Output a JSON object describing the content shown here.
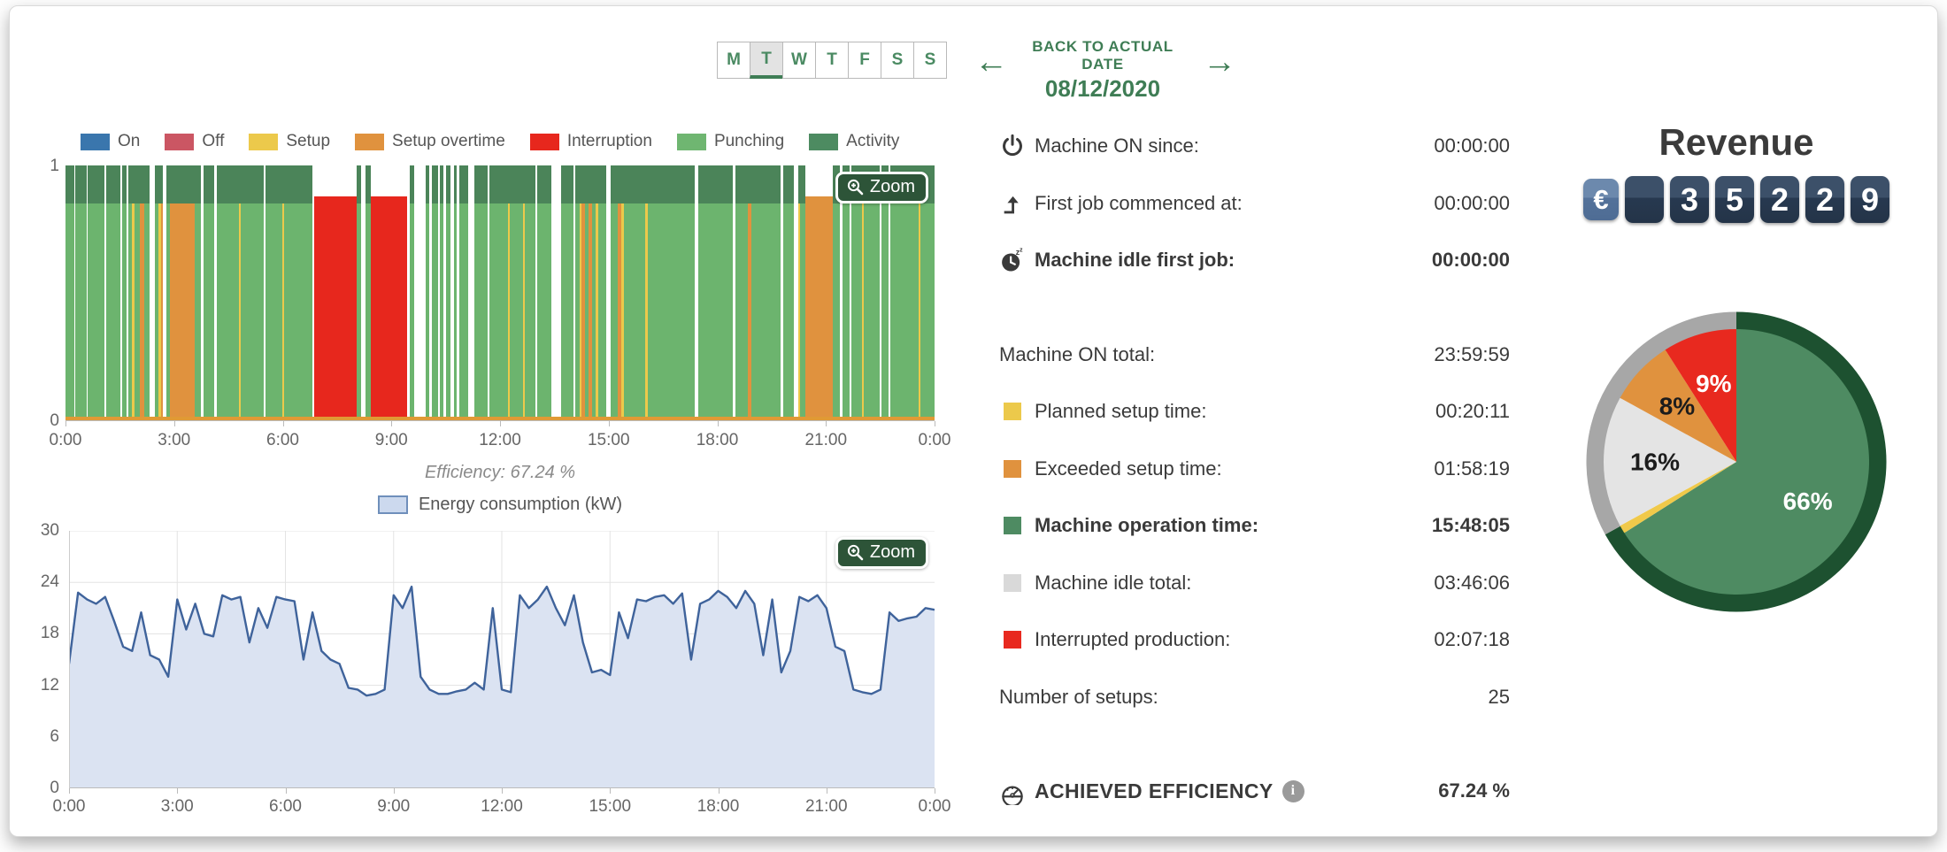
{
  "header": {
    "days": [
      "M",
      "T",
      "W",
      "T",
      "F",
      "S",
      "S"
    ],
    "selected_day_index": 1,
    "prev_arrow": "←",
    "next_arrow": "→",
    "back_label": "BACK TO ACTUAL DATE",
    "date": "08/12/2020"
  },
  "zoom_button_label": "Zoom",
  "efficiency_caption": "Efficiency: 67.24 %",
  "energy_legend_label": "Energy consumption (kW)",
  "timeline_legend": [
    {
      "label": "On",
      "color": "#3a76ad"
    },
    {
      "label": "Off",
      "color": "#cb5663"
    },
    {
      "label": "Setup",
      "color": "#ecc94b"
    },
    {
      "label": "Setup overtime",
      "color": "#e0923e"
    },
    {
      "label": "Interruption",
      "color": "#e7271d"
    },
    {
      "label": "Punching",
      "color": "#6fb671"
    },
    {
      "label": "Activity",
      "color": "#4d8b61"
    }
  ],
  "stats": {
    "rows": [
      {
        "icon": "power-icon",
        "label": "Machine ON since:",
        "value": "00:00:00",
        "bold": false
      },
      {
        "icon": "first-job-icon",
        "label": "First job commenced at:",
        "value": "00:00:00",
        "bold": false
      },
      {
        "icon": "idle-clock-icon",
        "label": "Machine idle first job:",
        "value": "00:00:00",
        "bold": true
      },
      {
        "spacer": true
      },
      {
        "label": "Machine ON total:",
        "value": "23:59:59",
        "bold": false
      },
      {
        "swatch": "#ecc94b",
        "label": "Planned setup time:",
        "value": "00:20:11",
        "bold": false
      },
      {
        "swatch": "#e0923e",
        "label": "Exceeded setup time:",
        "value": "01:58:19",
        "bold": false
      },
      {
        "swatch": "#4e8b62",
        "label": "Machine operation time:",
        "value": "15:48:05",
        "bold": true
      },
      {
        "swatch": "#d9d9d9",
        "label": "Machine idle total:",
        "value": "03:46:06",
        "bold": false
      },
      {
        "swatch": "#e8291f",
        "label": "Interrupted production:",
        "value": "02:07:18",
        "bold": false
      },
      {
        "label": "Number of setups:",
        "value": "25",
        "bold": false
      },
      {
        "spacer": true
      },
      {
        "icon": "gauge-icon",
        "label": "ACHIEVED EFFICIENCY",
        "info": true,
        "value": "67.24 %",
        "bold": true,
        "caps": true
      }
    ]
  },
  "revenue": {
    "title": "Revenue",
    "currency": "€",
    "digits": [
      "",
      "3",
      "5",
      "2",
      "2",
      "9"
    ]
  },
  "chart_data": [
    {
      "type": "bar",
      "subtype": "machine-status-timeline",
      "x_ticks": [
        "0:00",
        "3:00",
        "6:00",
        "9:00",
        "12:00",
        "15:00",
        "18:00",
        "21:00",
        "0:00"
      ],
      "y_ticks": [
        "1",
        "0"
      ],
      "ylim": [
        0,
        1
      ],
      "legend": [
        "On",
        "Off",
        "Setup",
        "Setup overtime",
        "Interruption",
        "Punching",
        "Activity"
      ],
      "segment_palette": {
        "p": {
          "name": "punching",
          "body": "#6cb46e",
          "cap": "#4b8459",
          "bodyH": 85
        },
        "s": {
          "name": "setup",
          "body": "#ecc94b",
          "cap": "#4b8459",
          "bodyH": 85
        },
        "o": {
          "name": "setup-overtime",
          "body": "#e0923e",
          "cap": "#4b8459",
          "bodyH": 85
        },
        "O": {
          "name": "setup-overtime-long",
          "body": "#e0923e",
          "cap": null,
          "bodyH": 88
        },
        "i": {
          "name": "interruption",
          "body": "#e7271d",
          "cap": null,
          "bodyH": 88
        },
        "g": {
          "name": "idle-gap",
          "body": null,
          "cap": null,
          "bodyH": 85
        }
      },
      "segments": [
        [
          "p",
          1.0
        ],
        [
          "g",
          0.18
        ],
        [
          "p",
          1.3
        ],
        [
          "g",
          0.18
        ],
        [
          "p",
          1.9
        ],
        [
          "g",
          0.3
        ],
        [
          "p",
          1.6
        ],
        [
          "g",
          0.18
        ],
        [
          "p",
          0.6
        ],
        [
          "g",
          0.18
        ],
        [
          "p",
          0.45
        ],
        [
          "s",
          0.28
        ],
        [
          "p",
          0.65
        ],
        [
          "o",
          0.55
        ],
        [
          "p",
          0.6
        ],
        [
          "g",
          0.65
        ],
        [
          "p",
          0.35
        ],
        [
          "s",
          0.3
        ],
        [
          "o",
          0.3
        ],
        [
          "g",
          0.35
        ],
        [
          "p",
          0.45
        ],
        [
          "o",
          2.9
        ],
        [
          "p",
          0.75
        ],
        [
          "g",
          0.3
        ],
        [
          "p",
          1.3
        ],
        [
          "g",
          0.25
        ],
        [
          "p",
          2.6
        ],
        [
          "s",
          0.22
        ],
        [
          "p",
          2.7
        ],
        [
          "g",
          0.3
        ],
        [
          "p",
          1.9
        ],
        [
          "s",
          0.25
        ],
        [
          "p",
          3.3
        ],
        [
          "g",
          0.25
        ],
        [
          "i",
          5.0
        ],
        [
          "p",
          0.55
        ],
        [
          "g",
          0.5
        ],
        [
          "p",
          0.6
        ],
        [
          "i",
          4.3
        ],
        [
          "g",
          0.35
        ],
        [
          "p",
          0.55
        ],
        [
          "g",
          1.3
        ],
        [
          "p",
          0.5
        ],
        [
          "g",
          0.3
        ],
        [
          "p",
          0.65
        ],
        [
          "g",
          0.3
        ],
        [
          "p",
          0.4
        ],
        [
          "g",
          0.3
        ],
        [
          "p",
          0.5
        ],
        [
          "g",
          0.4
        ],
        [
          "p",
          0.35
        ],
        [
          "g",
          0.3
        ],
        [
          "p",
          1.0
        ],
        [
          "g",
          0.8
        ],
        [
          "p",
          1.5
        ],
        [
          "g",
          0.3
        ],
        [
          "p",
          2.2
        ],
        [
          "s",
          0.2
        ],
        [
          "p",
          1.5
        ],
        [
          "s",
          0.25
        ],
        [
          "p",
          1.2
        ],
        [
          "g",
          0.25
        ],
        [
          "p",
          1.7
        ],
        [
          "g",
          1.1
        ],
        [
          "p",
          1.5
        ],
        [
          "g",
          0.2
        ],
        [
          "p",
          0.5
        ],
        [
          "s",
          0.25
        ],
        [
          "o",
          0.45
        ],
        [
          "p",
          0.35
        ],
        [
          "o",
          0.4
        ],
        [
          "p",
          0.5
        ],
        [
          "s",
          0.25
        ],
        [
          "p",
          1.0
        ],
        [
          "g",
          0.45
        ],
        [
          "p",
          0.85
        ],
        [
          "o",
          0.45
        ],
        [
          "s",
          0.3
        ],
        [
          "p",
          2.5
        ],
        [
          "s",
          0.3
        ],
        [
          "p",
          5.6
        ],
        [
          "g",
          0.4
        ],
        [
          "p",
          4.1
        ],
        [
          "g",
          0.25
        ],
        [
          "p",
          1.5
        ],
        [
          "o",
          0.45
        ],
        [
          "p",
          3.4
        ],
        [
          "g",
          0.3
        ],
        [
          "p",
          1.3
        ],
        [
          "g",
          0.45
        ],
        [
          "s",
          0.3
        ],
        [
          "p",
          0.55
        ],
        [
          "O",
          3.3
        ],
        [
          "p",
          0.85
        ],
        [
          "g",
          0.25
        ],
        [
          "p",
          0.85
        ],
        [
          "g",
          0.2
        ],
        [
          "p",
          1.25
        ],
        [
          "s",
          0.25
        ],
        [
          "p",
          1.9
        ],
        [
          "g",
          0.2
        ],
        [
          "p",
          0.85
        ],
        [
          "g",
          0.2
        ],
        [
          "p",
          3.3
        ],
        [
          "s",
          0.2
        ],
        [
          "p",
          1.7
        ]
      ],
      "baseline_color": "#e09a35"
    },
    {
      "type": "area",
      "title": "Energy consumption (kW)",
      "x_ticks": [
        "0:00",
        "3:00",
        "6:00",
        "9:00",
        "12:00",
        "15:00",
        "18:00",
        "21:00",
        "0:00"
      ],
      "y_ticks": [
        30,
        24,
        18,
        12,
        6,
        0
      ],
      "ylim": [
        0,
        30
      ],
      "line_color": "#3f639b",
      "fill_color": "#dbe3f2",
      "values": [
        14.5,
        22.8,
        22,
        21.5,
        22.3,
        19.5,
        16.5,
        16,
        20.5,
        15.5,
        15,
        13,
        22,
        18.5,
        21.5,
        18,
        17.7,
        22.5,
        22,
        22.3,
        17,
        21,
        18.7,
        22.3,
        22,
        21.8,
        15,
        20.5,
        16,
        15,
        14.5,
        11.7,
        11.5,
        10.8,
        11,
        11.5,
        22.5,
        21,
        23.5,
        13,
        11.5,
        11,
        11,
        11.3,
        11.5,
        12.3,
        11.5,
        21,
        11.5,
        11.2,
        22.5,
        21,
        22,
        23.5,
        21,
        19,
        22.5,
        17,
        13.5,
        13.8,
        13.2,
        20.5,
        17.5,
        22,
        21.8,
        22.3,
        22.5,
        21.5,
        22.7,
        15,
        21.5,
        22,
        23,
        22.3,
        21,
        23,
        21.5,
        15.5,
        22,
        13.5,
        16,
        22.3,
        21.8,
        22.5,
        21,
        16.5,
        16,
        11.5,
        11.2,
        11,
        11.5,
        20.5,
        19.5,
        19.8,
        20,
        21,
        20.8
      ]
    },
    {
      "type": "pie",
      "title": "Revenue",
      "start_angle": 0,
      "slices": [
        {
          "label": "66%",
          "value": 66,
          "color": "#4e8b62",
          "label_color": "#ffffff"
        },
        {
          "label": "",
          "value": 1,
          "color": "#f0c94a",
          "label_color": "#222222"
        },
        {
          "label": "16%",
          "value": 16,
          "color": "#e4e4e4",
          "label_color": "#1c1c1c"
        },
        {
          "label": "8%",
          "value": 8,
          "color": "#e0923e",
          "label_color": "#1c1c1c"
        },
        {
          "label": "9%",
          "value": 9,
          "color": "#e8291f",
          "label_color": "#ffffff"
        }
      ],
      "ring": [
        {
          "from": 0,
          "to": 241,
          "color": "#1d5130"
        },
        {
          "from": 241,
          "to": 360,
          "color": "#a7a7a7"
        }
      ]
    }
  ]
}
